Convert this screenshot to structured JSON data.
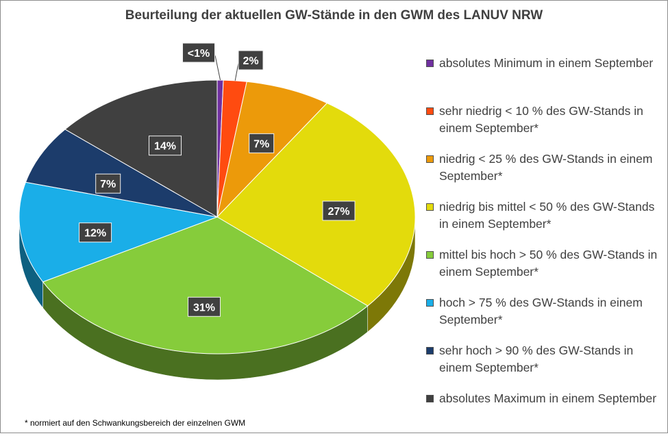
{
  "chart_data": {
    "type": "pie",
    "title": "Beurteilung der aktuellen GW-Stände in den GWM des LANUV NRW",
    "slices": [
      {
        "label": "absolutes Minimum  in einem September",
        "value": 0.5,
        "display": "<1%",
        "color": "#7030a0"
      },
      {
        "label": "sehr niedrig  < 10 % des GW-Stands in einem September*",
        "value": 1.9,
        "display": "2%",
        "color": "#ff4b10"
      },
      {
        "label": "niedrig   < 25 % des GW-Stands in einem September*",
        "value": 7,
        "display": "7%",
        "color": "#ec9a0a"
      },
      {
        "label": "niedrig bis mittel  < 50 % des GW-Stands in einem September*",
        "value": 27,
        "display": "27%",
        "color": "#e3db0c"
      },
      {
        "label": "mittel bis hoch  > 50 % des GW-Stands in einem September*",
        "value": 31,
        "display": "31%",
        "color": "#86cc3b"
      },
      {
        "label": "hoch  > 75 % des GW-Stands in einem September*",
        "value": 12,
        "display": "12%",
        "color": "#1aaee8"
      },
      {
        "label": "sehr hoch  > 90 % des GW-Stands in einem September*",
        "value": 7,
        "display": "7%",
        "color": "#1c3c6b"
      },
      {
        "label": "absolutes Maximum  in einem September",
        "value": 14,
        "display": "14%",
        "color": "#404040"
      }
    ],
    "legend_position": "right",
    "start_angle": "12 o'clock",
    "direction": "clockwise",
    "style": "3D tilted pie",
    "footnote": "* normiert auf den Schwankungsbereich der einzelnen GWM"
  }
}
